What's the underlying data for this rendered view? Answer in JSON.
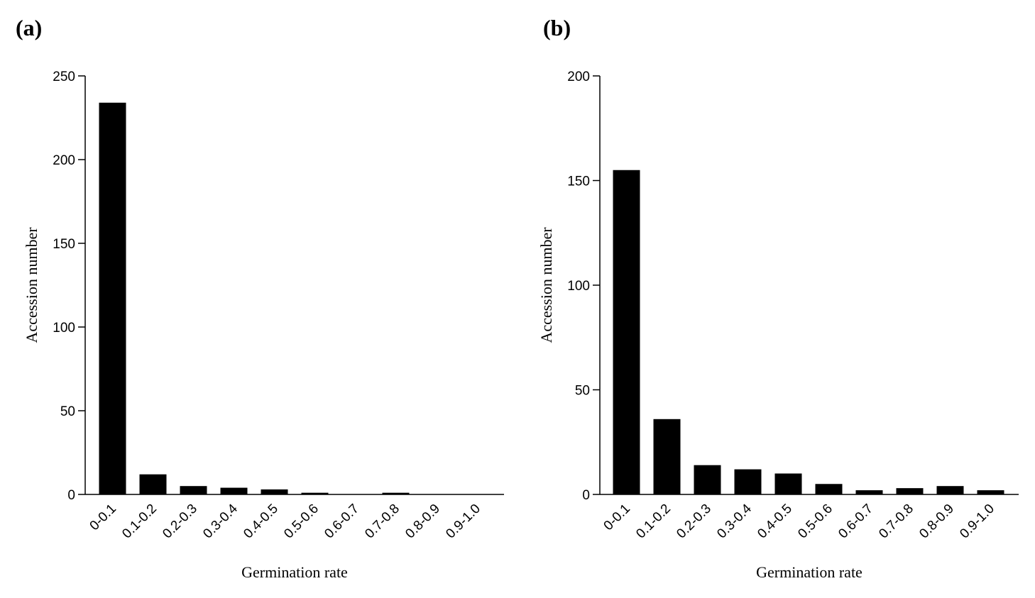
{
  "chart_data": [
    {
      "type": "bar",
      "label": "(a)",
      "x_label": "Germination rate",
      "y_label": "Accession number",
      "categories": [
        "0-0.1",
        "0.1-0.2",
        "0.2-0.3",
        "0.3-0.4",
        "0.4-0.5",
        "0.5-0.6",
        "0.6-0.7",
        "0.7-0.8",
        "0.8-0.9",
        "0.9-1.0"
      ],
      "values": [
        234,
        12,
        5,
        4,
        3,
        1,
        0,
        1,
        0,
        0
      ],
      "color": "#000000",
      "ylim": [
        0,
        250
      ],
      "yticks": [
        0,
        50,
        100,
        150,
        200,
        250
      ]
    },
    {
      "type": "bar",
      "label": "(b)",
      "x_label": "Germination rate",
      "y_label": "Accession number",
      "categories": [
        "0-0.1",
        "0.1-0.2",
        "0.2-0.3",
        "0.3-0.4",
        "0.4-0.5",
        "0.5-0.6",
        "0.6-0.7",
        "0.7-0.8",
        "0.8-0.9",
        "0.9-1.0"
      ],
      "values": [
        155,
        36,
        14,
        12,
        10,
        5,
        2,
        3,
        4,
        2
      ],
      "color": "#000000",
      "ylim": [
        0,
        200
      ],
      "yticks": [
        0,
        50,
        100,
        150,
        200
      ]
    }
  ]
}
